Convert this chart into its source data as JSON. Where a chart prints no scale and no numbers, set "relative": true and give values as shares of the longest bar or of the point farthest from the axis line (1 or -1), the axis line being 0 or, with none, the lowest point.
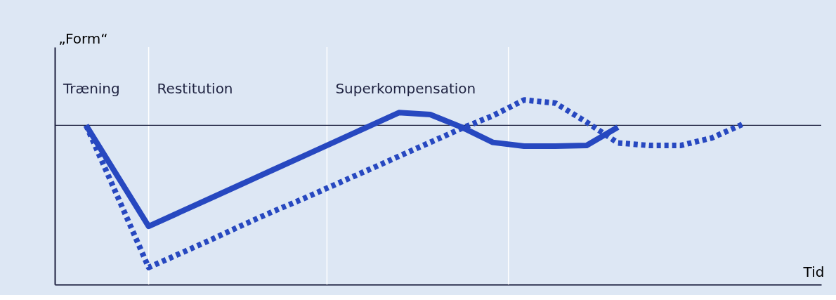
{
  "chart_data": {
    "type": "line",
    "relative": true,
    "ylabel": "„Form“",
    "xlabel": "Tid",
    "annotations": [
      "Træning",
      "Restitution",
      "Superkompensation"
    ],
    "categories": [
      null,
      null,
      null,
      null,
      null,
      null,
      null,
      null,
      null,
      null,
      null,
      null,
      null,
      null,
      null,
      null,
      null,
      null,
      null,
      null,
      null,
      null
    ],
    "series": [
      {
        "color": "#2748c0",
        "line_style": "solid",
        "values": [
          0,
          -0.356,
          -0.711,
          -0.611,
          -0.511,
          -0.411,
          -0.311,
          -0.211,
          -0.111,
          -0.011,
          0.089,
          0.076,
          -0.013,
          -0.12,
          -0.147,
          -0.147,
          -0.142,
          -0.013,
          null,
          null,
          null,
          null
        ]
      },
      {
        "color": "#2748c0",
        "line_style": "dotted",
        "values": [
          0,
          -0.498,
          -1.0,
          -0.902,
          -0.804,
          -0.702,
          -0.604,
          -0.511,
          -0.413,
          -0.316,
          -0.218,
          -0.12,
          -0.022,
          0.067,
          0.178,
          0.156,
          0.022,
          -0.124,
          -0.142,
          -0.142,
          -0.089,
          0.009
        ]
      }
    ]
  }
}
